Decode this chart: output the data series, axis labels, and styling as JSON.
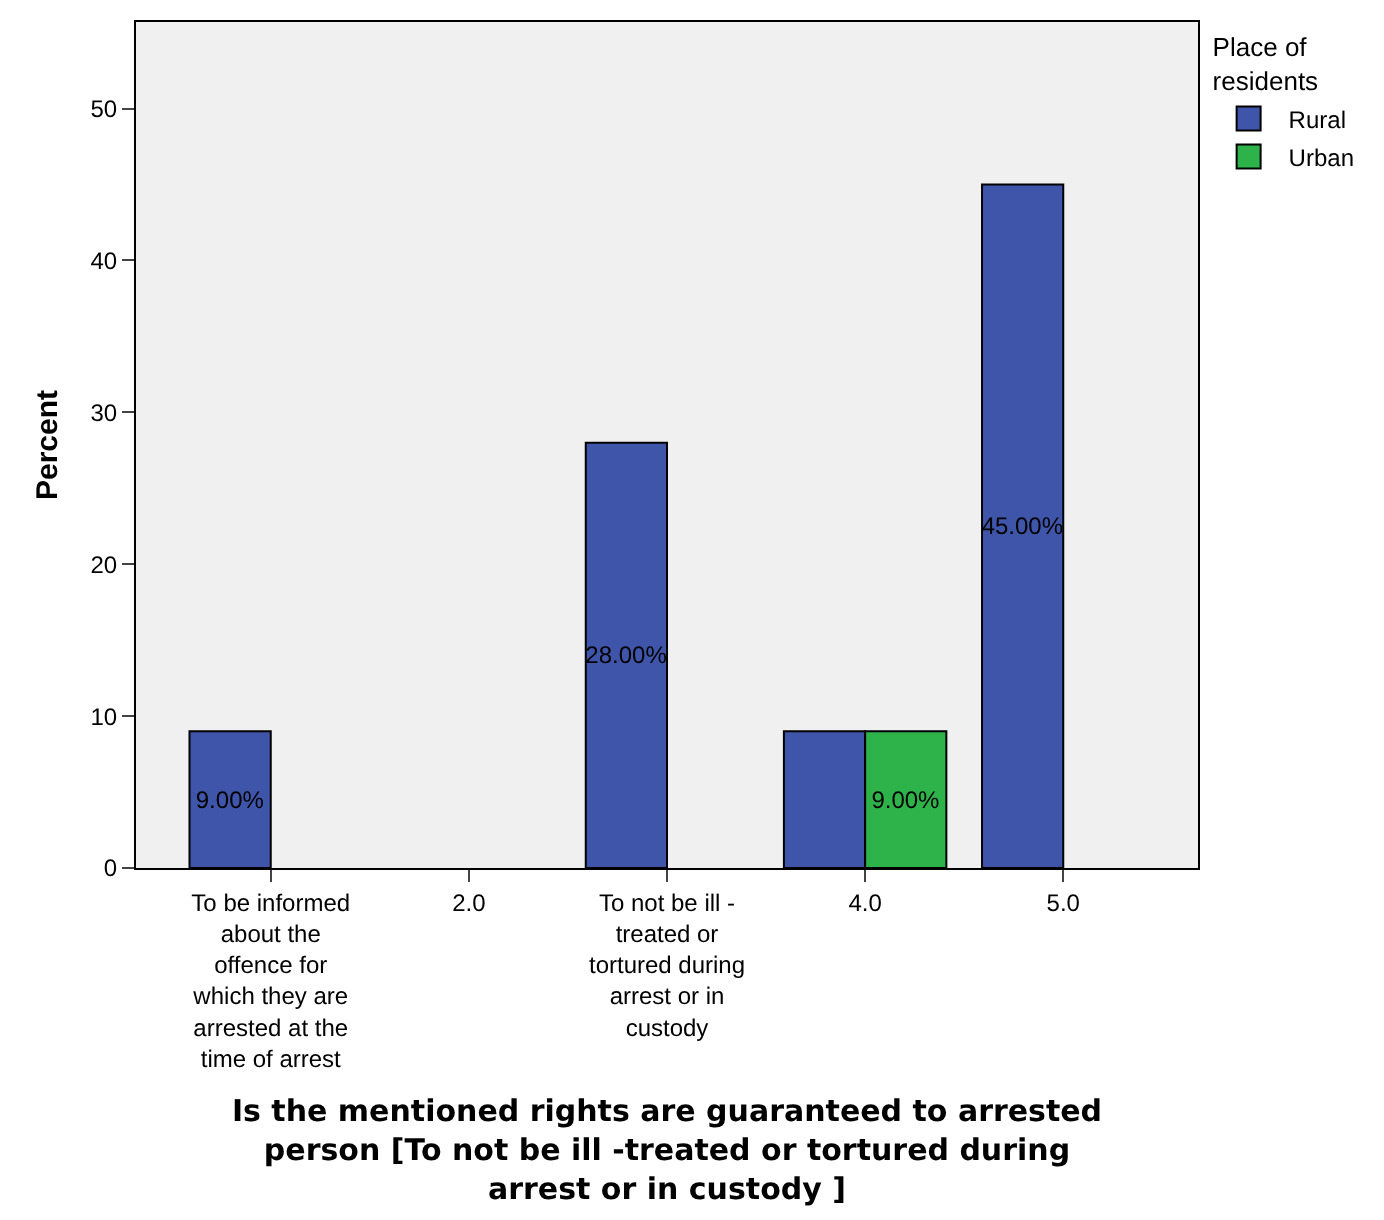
{
  "chart_data": {
    "type": "bar",
    "xlabel": "Is the mentioned rights are guaranteed to arrested person [To not be ill -treated or tortured during arrest or in custody ]",
    "ylabel": "Percent",
    "legend_title": "Place of residents",
    "categories": [
      "To be informed about the offence for which they are arrested at the time of arrest",
      "2.0",
      "To not be ill - treated or tortured during arrest or in custody",
      "4.0",
      "5.0"
    ],
    "series": [
      {
        "name": "Rural",
        "color": "#3e55a9",
        "values": [
          9,
          null,
          28,
          9,
          45
        ],
        "value_labels": [
          "9.00%",
          null,
          "28.00%",
          null,
          "45.00%"
        ]
      },
      {
        "name": "Urban",
        "color": "#2db34a",
        "values": [
          null,
          null,
          null,
          9,
          null
        ],
        "value_labels": [
          null,
          null,
          null,
          "9.00%",
          null
        ]
      }
    ],
    "ylim": [
      0,
      55.7
    ],
    "yticks": [
      0,
      10,
      20,
      30,
      40,
      50
    ],
    "grid": false,
    "legend": "top right"
  }
}
